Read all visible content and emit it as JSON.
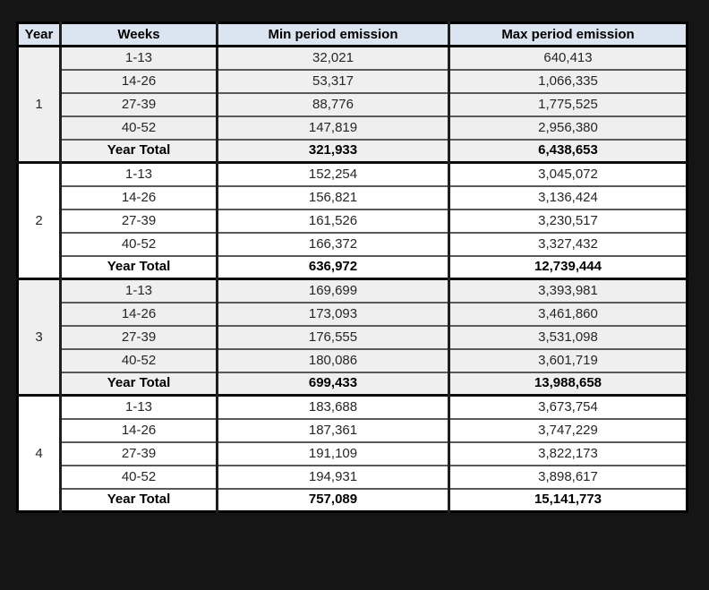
{
  "colors": {
    "frame_bg": "#151515",
    "header_bg": "#dbe5f1",
    "band_row_bg": "#efefef",
    "plain_row_bg": "#ffffff",
    "outer_border": "#000000",
    "grid_line": "#5a5a5a"
  },
  "chart_data": {
    "type": "table",
    "columns": [
      "Year",
      "Weeks",
      "Min period emission",
      "Max period emission"
    ],
    "groups": [
      {
        "year": "1",
        "periods": [
          {
            "weeks": "1-13",
            "min": "32,021",
            "max": "640,413"
          },
          {
            "weeks": "14-26",
            "min": "53,317",
            "max": "1,066,335"
          },
          {
            "weeks": "27-39",
            "min": "88,776",
            "max": "1,775,525"
          },
          {
            "weeks": "40-52",
            "min": "147,819",
            "max": "2,956,380"
          }
        ],
        "total": {
          "label": "Year Total",
          "min": "321,933",
          "max": "6,438,653"
        }
      },
      {
        "year": "2",
        "periods": [
          {
            "weeks": "1-13",
            "min": "152,254",
            "max": "3,045,072"
          },
          {
            "weeks": "14-26",
            "min": "156,821",
            "max": "3,136,424"
          },
          {
            "weeks": "27-39",
            "min": "161,526",
            "max": "3,230,517"
          },
          {
            "weeks": "40-52",
            "min": "166,372",
            "max": "3,327,432"
          }
        ],
        "total": {
          "label": "Year Total",
          "min": "636,972",
          "max": "12,739,444"
        }
      },
      {
        "year": "3",
        "periods": [
          {
            "weeks": "1-13",
            "min": "169,699",
            "max": "3,393,981"
          },
          {
            "weeks": "14-26",
            "min": "173,093",
            "max": "3,461,860"
          },
          {
            "weeks": "27-39",
            "min": "176,555",
            "max": "3,531,098"
          },
          {
            "weeks": "40-52",
            "min": "180,086",
            "max": "3,601,719"
          }
        ],
        "total": {
          "label": "Year Total",
          "min": "699,433",
          "max": "13,988,658"
        }
      },
      {
        "year": "4",
        "periods": [
          {
            "weeks": "1-13",
            "min": "183,688",
            "max": "3,673,754"
          },
          {
            "weeks": "14-26",
            "min": "187,361",
            "max": "3,747,229"
          },
          {
            "weeks": "27-39",
            "min": "191,109",
            "max": "3,822,173"
          },
          {
            "weeks": "40-52",
            "min": "194,931",
            "max": "3,898,617"
          }
        ],
        "total": {
          "label": "Year Total",
          "min": "757,089",
          "max": "15,141,773"
        }
      }
    ]
  }
}
